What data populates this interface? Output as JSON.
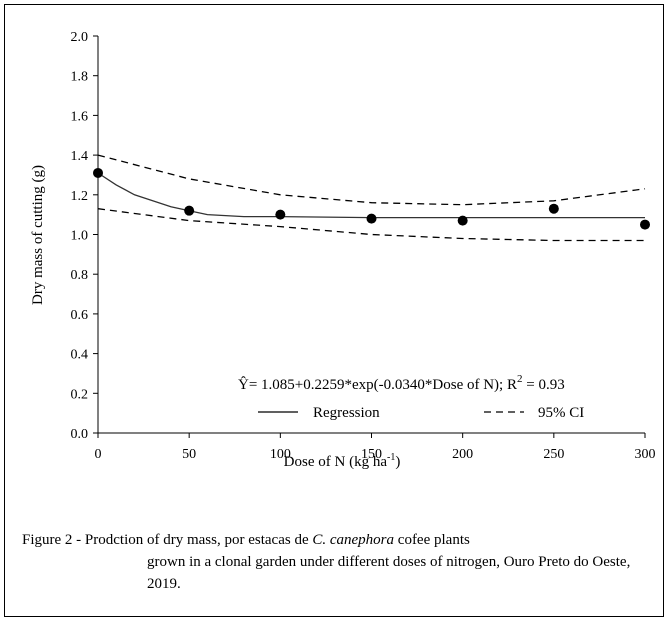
{
  "chart_data": {
    "type": "scatter",
    "xlabel_main": "Dose of  N (kg ha",
    "xlabel_sup": "-1",
    "xlabel_end": ")",
    "ylabel": "Dry mass of cutting (g)",
    "xlim": [
      0,
      300
    ],
    "ylim": [
      0,
      2.0
    ],
    "x_ticks": [
      "0",
      "50",
      "100",
      "150",
      "200",
      "250",
      "300"
    ],
    "y_ticks": [
      "0.0",
      "0.2",
      "0.4",
      "0.6",
      "0.8",
      "1.0",
      "1.2",
      "1.4",
      "1.6",
      "1.8",
      "2.0"
    ],
    "grid": false,
    "series": [
      {
        "type": "scatter",
        "x": [
          0,
          50,
          100,
          150,
          200,
          250,
          300
        ],
        "y": [
          1.31,
          1.12,
          1.1,
          1.08,
          1.07,
          1.13,
          1.05
        ]
      },
      {
        "name": "Regression",
        "type": "line",
        "style": "solid",
        "x": [
          0,
          10,
          20,
          30,
          40,
          50,
          60,
          80,
          100,
          150,
          200,
          250,
          300
        ],
        "y": [
          1.31,
          1.25,
          1.2,
          1.17,
          1.14,
          1.12,
          1.1,
          1.09,
          1.09,
          1.085,
          1.085,
          1.085,
          1.085
        ]
      },
      {
        "name": "95% CI upper",
        "type": "line",
        "style": "dashed",
        "x": [
          0,
          50,
          100,
          150,
          200,
          250,
          300
        ],
        "y": [
          1.4,
          1.28,
          1.2,
          1.16,
          1.15,
          1.17,
          1.23
        ]
      },
      {
        "name": "95% CI lower",
        "type": "line",
        "style": "dashed",
        "x": [
          0,
          50,
          100,
          150,
          200,
          250,
          300
        ],
        "y": [
          1.13,
          1.07,
          1.04,
          1.0,
          0.98,
          0.97,
          0.97
        ]
      }
    ],
    "equation": {
      "main": "Ŷ= 1.085+0.2259*exp(-0.0340*Dose of N); R",
      "sup": "2",
      "end": " = 0.93"
    },
    "legend": {
      "placement": "bottom-right",
      "regression_label": "Regression",
      "ci_label": "95% CI"
    }
  },
  "caption": {
    "prefix": "Figure 2 - Prodction of dry mass, por estacas de ",
    "species": "C. canephora",
    "rest_line1": " cofee plants",
    "line2": "grown in a clonal garden under different doses of nitrogen, Ouro Preto do Oeste, 2019."
  },
  "colors": {
    "axis": "#000000",
    "marker": "#000000",
    "regression": "#333333",
    "ci": "#000000"
  }
}
